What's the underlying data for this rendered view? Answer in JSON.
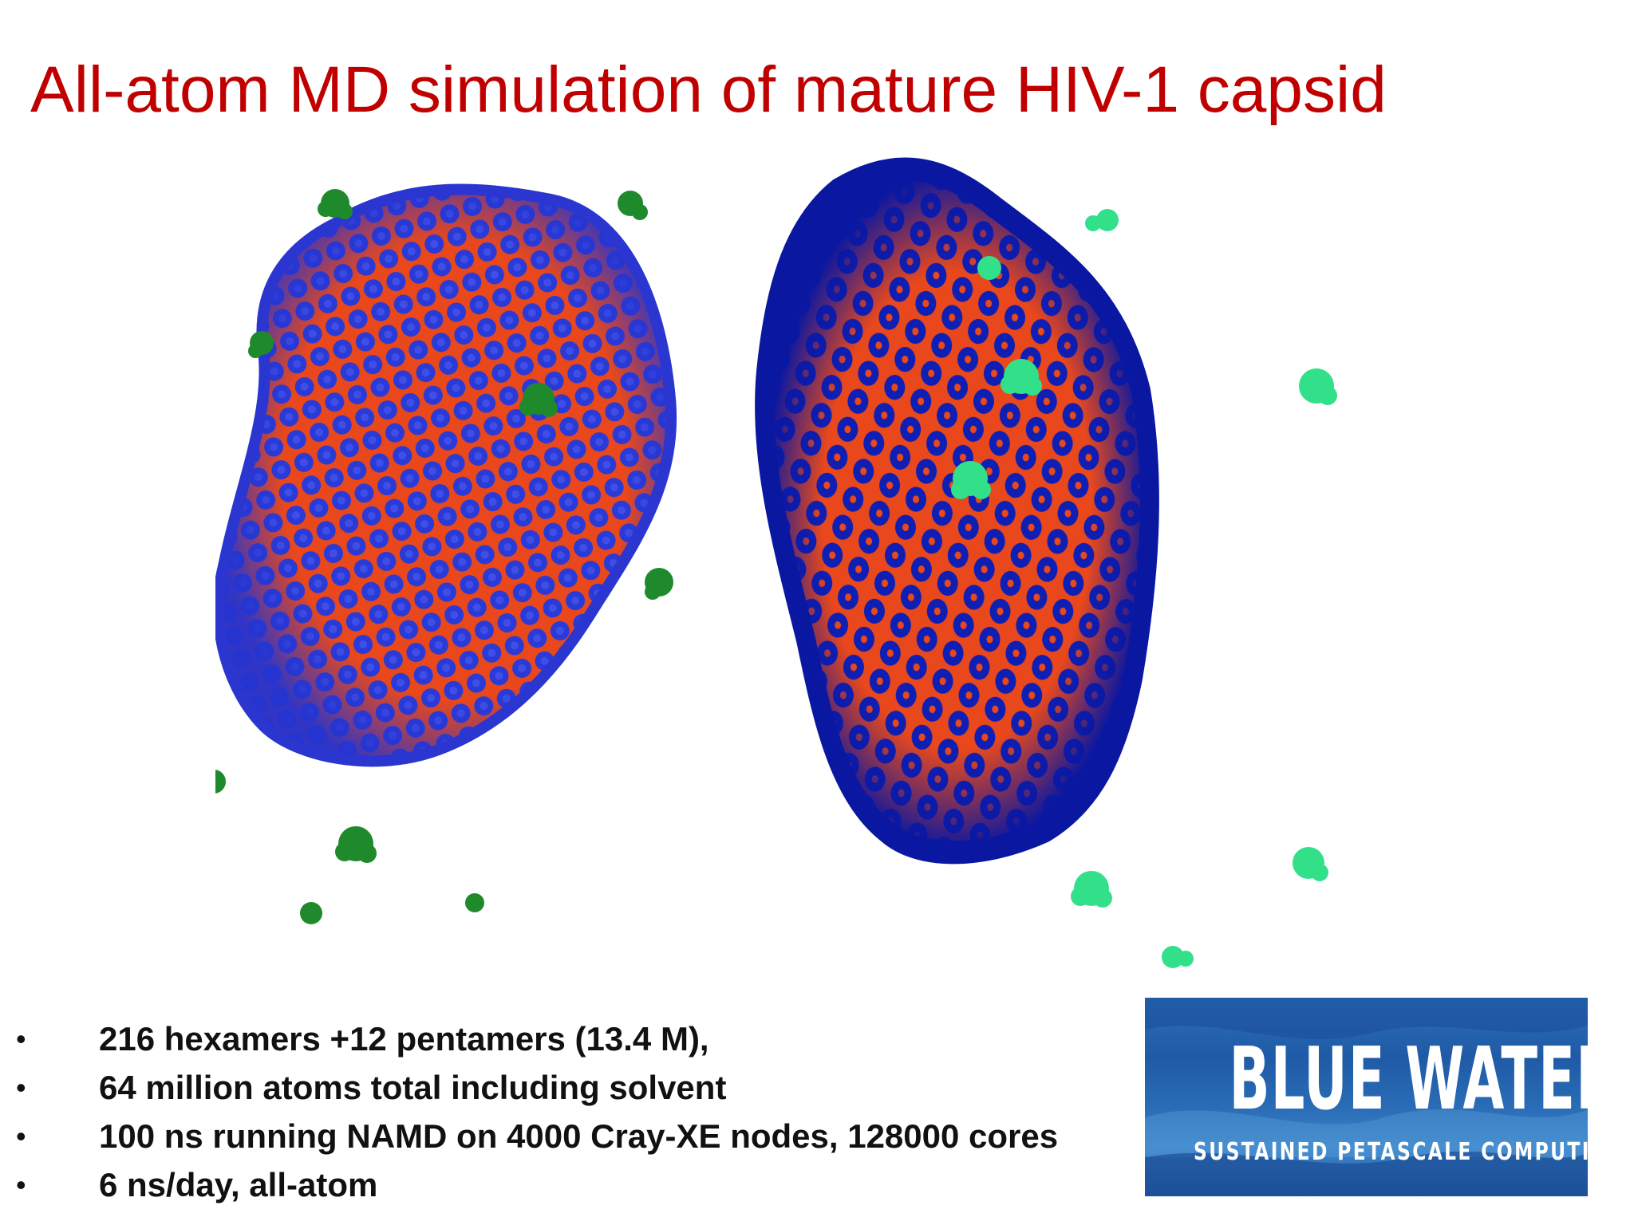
{
  "slide": {
    "title": "All-atom MD simulation of mature HIV-1 capsid"
  },
  "figure": {
    "colors": {
      "hexamer_blue": "#1e2fd0",
      "hexamer_dark_blue": "#0b1aa8",
      "interface_orange": "#e8481c",
      "pentamer_green": "#1f8a2c",
      "pentamer_light_green": "#33e08a"
    }
  },
  "bullets": [
    {
      "marker": "•",
      "text": "216 hexamers +12 pentamers (13.4 M),"
    },
    {
      "marker": "•",
      "text": "64 million atoms total including solvent"
    },
    {
      "marker": "•",
      "text": "100 ns running NAMD on 4000 Cray-XE nodes, 128000 cores"
    },
    {
      "marker": "•",
      "text": "6 ns/day, all-atom"
    }
  ],
  "logo": {
    "name": "BLUE WATERS",
    "tagline": "SUSTAINED PETASCALE COMPUTING",
    "color": "#2a6cb6"
  }
}
